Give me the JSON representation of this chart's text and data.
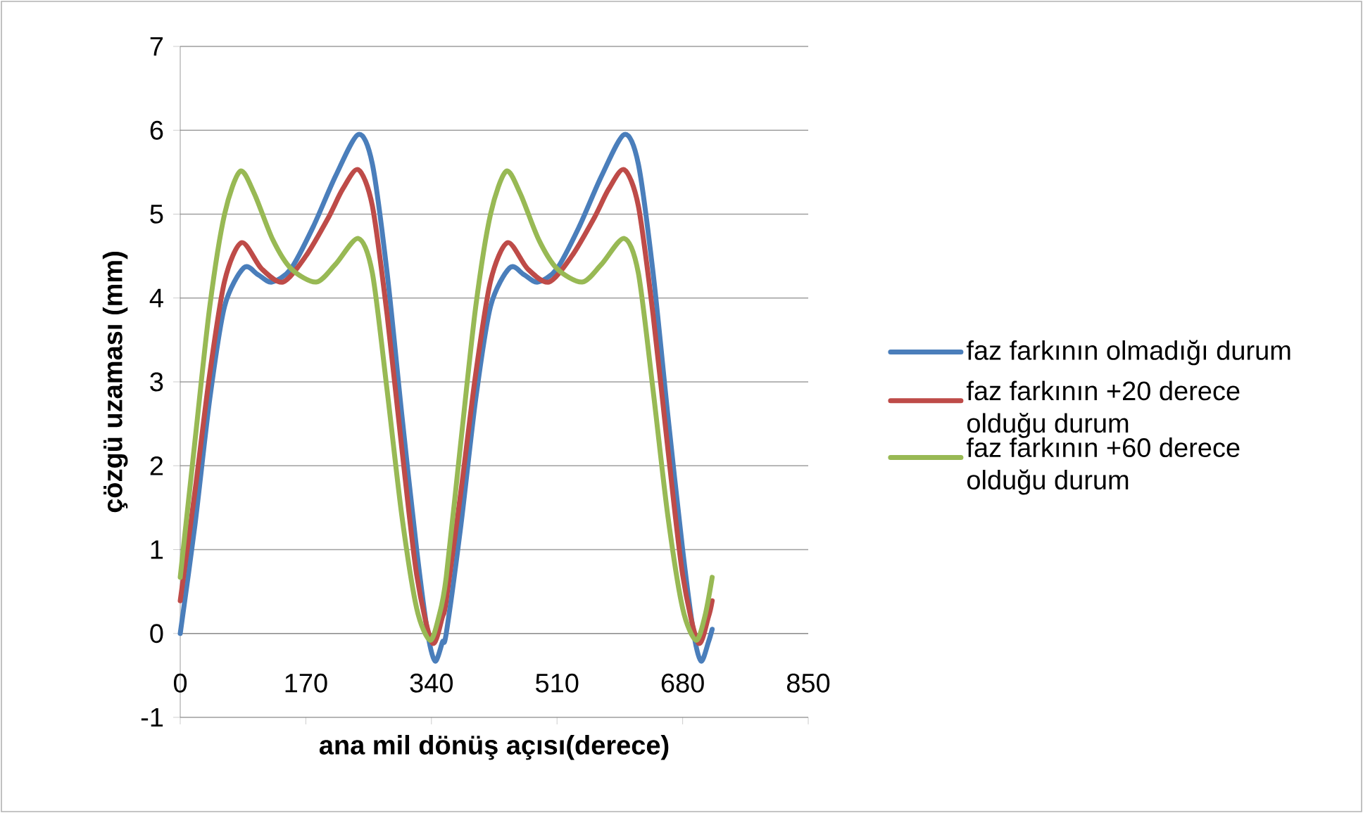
{
  "chart_data": {
    "type": "line",
    "xlabel": "ana mil dönüş açısı(derece)",
    "ylabel": "çözgü uzaması (mm)",
    "xlim": [
      0,
      850
    ],
    "xticks": [
      0,
      170,
      340,
      510,
      680,
      850
    ],
    "ylim": [
      -1,
      7
    ],
    "yticks": [
      -1,
      0,
      1,
      2,
      3,
      4,
      5,
      6,
      7
    ],
    "grid": "y",
    "legend": "right",
    "marker": "none",
    "line_style": "solid",
    "series": [
      {
        "name": "faz farkının olmadığı durum",
        "color": "#4a7ebb",
        "x": [
          0,
          20,
          40,
          60,
          86,
          105,
          124,
          150,
          180,
          210,
          241,
          260,
          280,
          300,
          320,
          335,
          345,
          355,
          360,
          380,
          400,
          420,
          446,
          465,
          484,
          510,
          540,
          570,
          601,
          620,
          640,
          660,
          680,
          695,
          705,
          715,
          720
        ],
        "values": [
          0,
          1.3,
          2.8,
          3.9,
          4.36,
          4.28,
          4.19,
          4.35,
          4.85,
          5.45,
          5.95,
          5.6,
          4.3,
          2.6,
          1.0,
          0.0,
          -0.33,
          -0.1,
          0.0,
          1.3,
          2.8,
          3.9,
          4.36,
          4.28,
          4.19,
          4.35,
          4.85,
          5.45,
          5.95,
          5.6,
          4.3,
          2.6,
          1.0,
          0.0,
          -0.33,
          -0.1,
          0.05
        ]
      },
      {
        "name": "faz farkının +20 derece olduğu durum",
        "color": "#be4b48",
        "x": [
          0,
          20,
          40,
          60,
          83,
          110,
          139,
          170,
          200,
          220,
          241,
          260,
          280,
          300,
          320,
          341,
          355,
          360,
          380,
          400,
          420,
          443,
          470,
          499,
          530,
          560,
          580,
          601,
          620,
          640,
          660,
          680,
          701,
          715,
          720
        ],
        "values": [
          0.39,
          1.7,
          3.1,
          4.2,
          4.66,
          4.35,
          4.19,
          4.5,
          4.95,
          5.3,
          5.53,
          5.1,
          3.8,
          2.2,
          0.7,
          -0.11,
          0.2,
          0.39,
          1.7,
          3.1,
          4.2,
          4.66,
          4.35,
          4.19,
          4.5,
          4.95,
          5.3,
          5.53,
          5.1,
          3.8,
          2.2,
          0.7,
          -0.11,
          0.2,
          0.39
        ]
      },
      {
        "name": "faz farkının +60 derece olduğu durum",
        "color": "#98b954",
        "x": [
          0,
          20,
          40,
          60,
          81,
          100,
          125,
          150,
          184,
          210,
          241,
          260,
          280,
          300,
          320,
          338,
          350,
          360,
          380,
          400,
          420,
          441,
          460,
          485,
          510,
          544,
          570,
          601,
          620,
          640,
          660,
          680,
          698,
          710,
          720
        ],
        "values": [
          0.67,
          2.3,
          3.9,
          5.0,
          5.51,
          5.25,
          4.7,
          4.35,
          4.19,
          4.4,
          4.71,
          4.3,
          2.9,
          1.4,
          0.3,
          -0.08,
          0.2,
          0.67,
          2.3,
          3.9,
          5.0,
          5.51,
          5.25,
          4.7,
          4.35,
          4.19,
          4.4,
          4.71,
          4.3,
          2.9,
          1.4,
          0.3,
          -0.08,
          0.2,
          0.67
        ]
      }
    ]
  }
}
